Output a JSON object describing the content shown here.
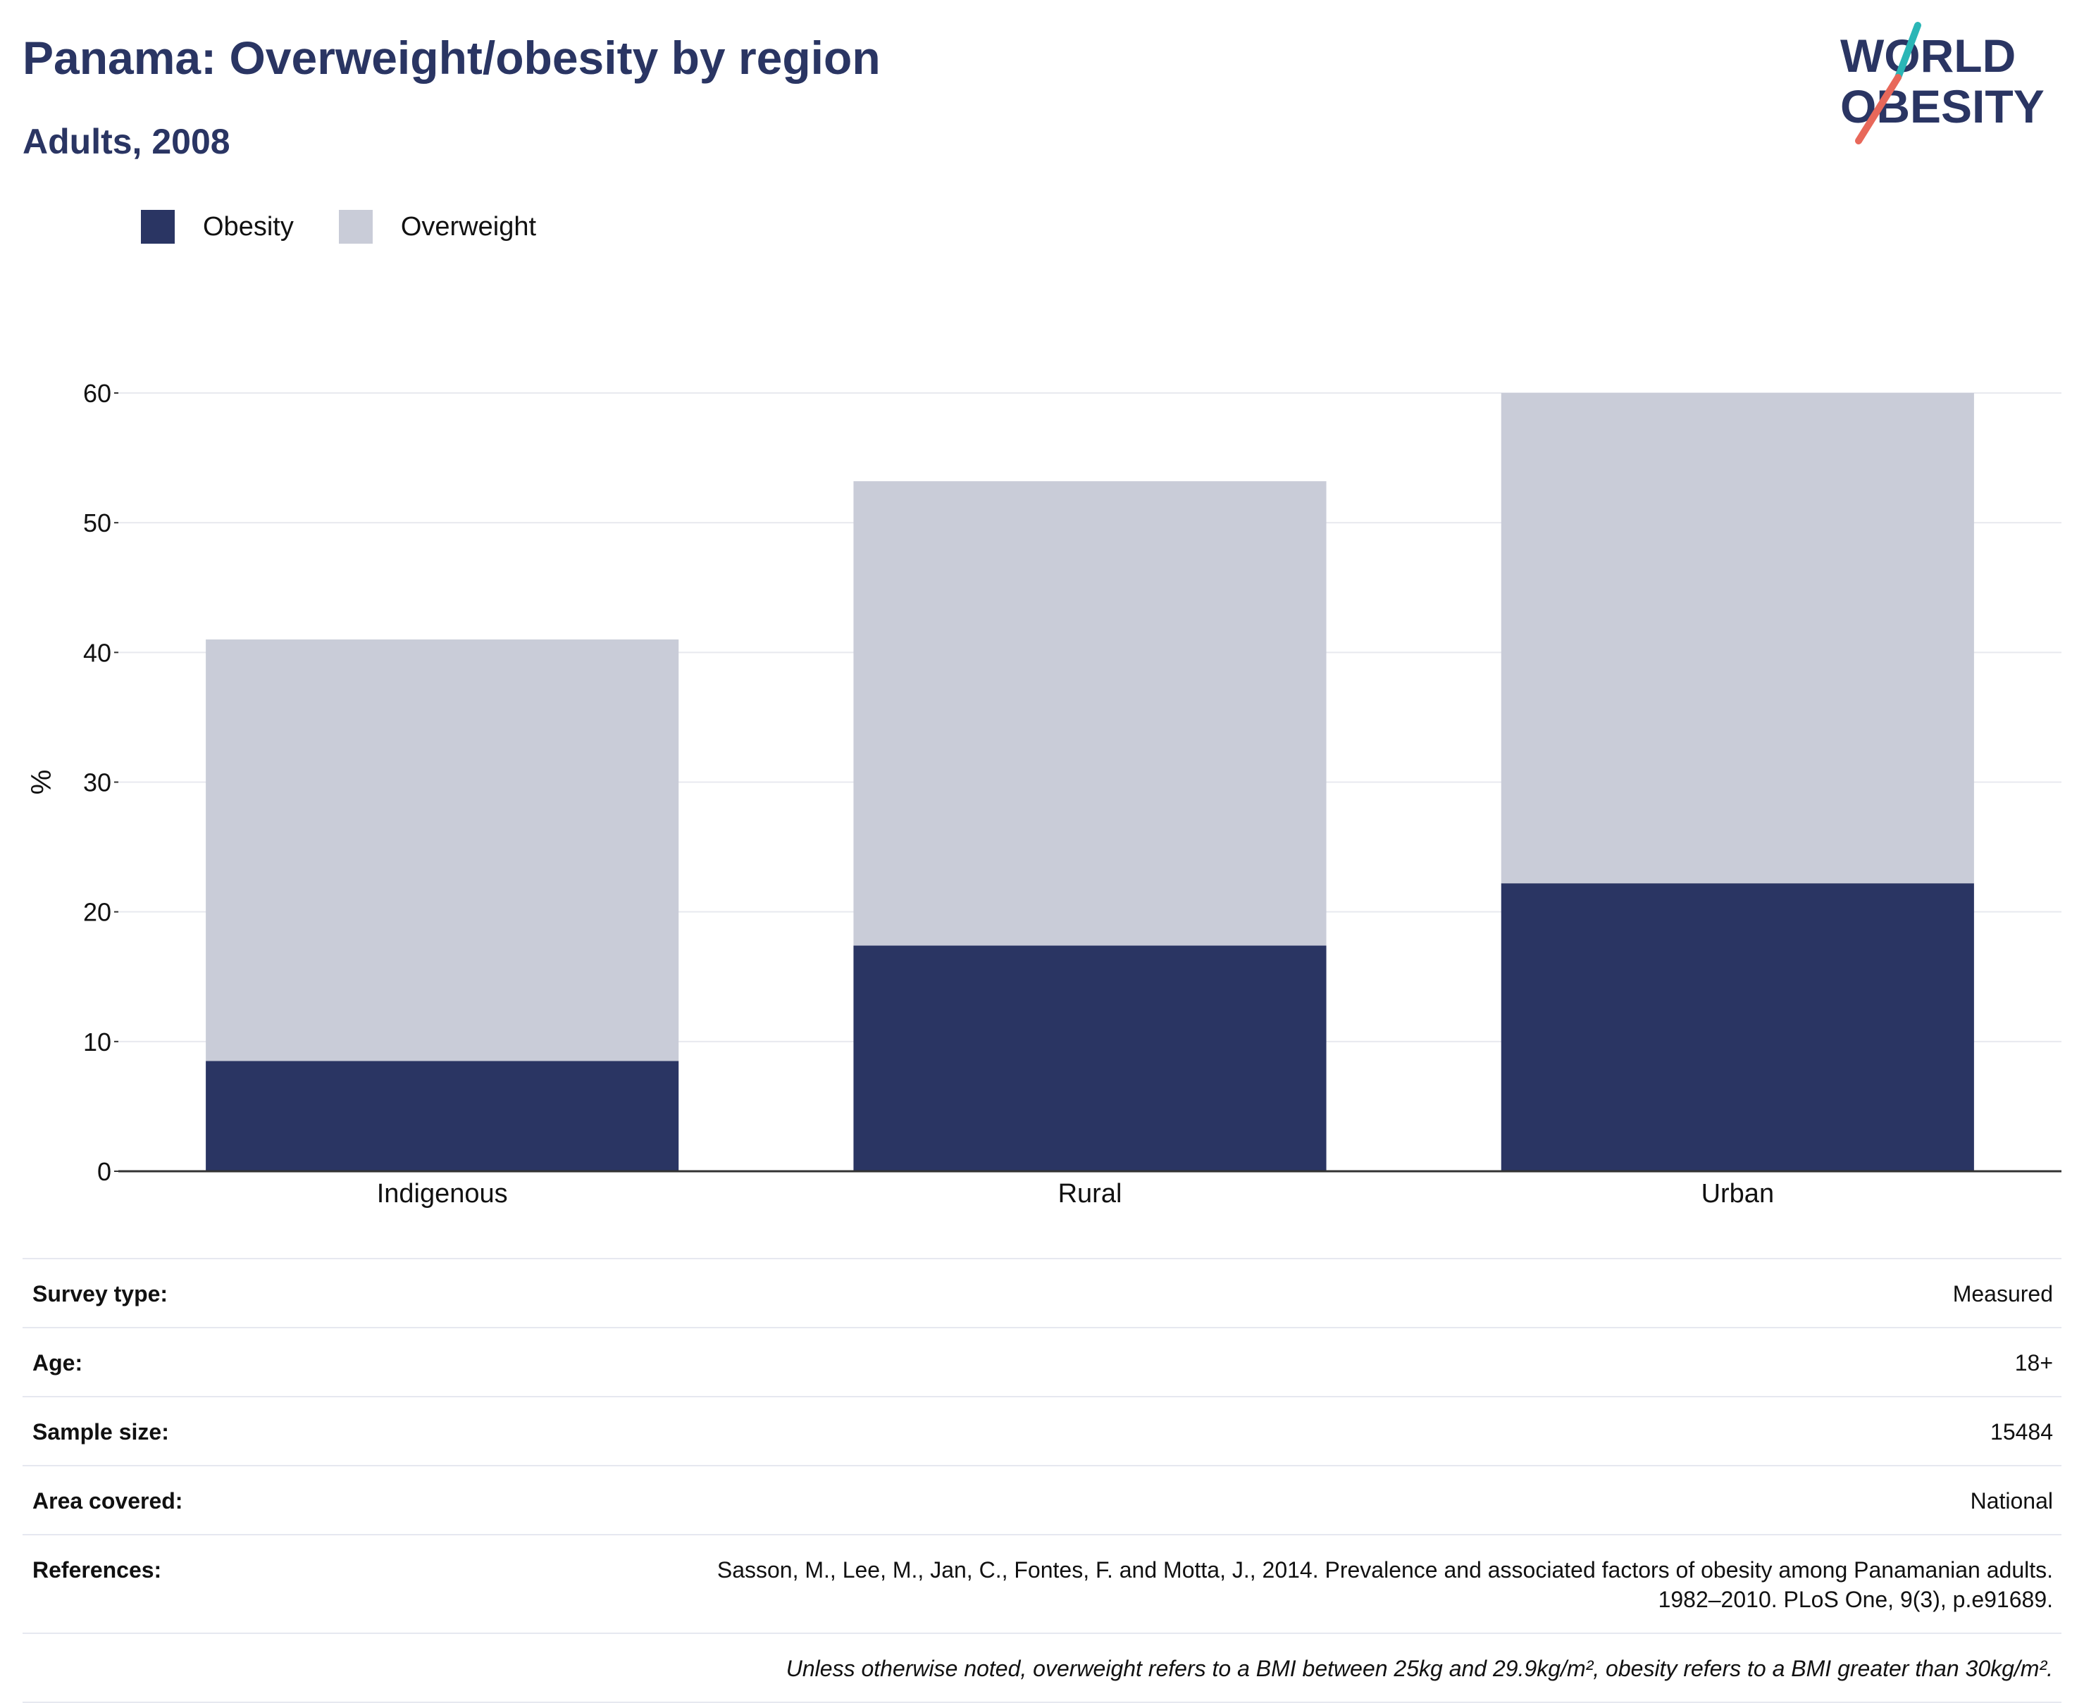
{
  "header": {
    "title": "Panama: Overweight/obesity by region",
    "subtitle": "Adults, 2008"
  },
  "logo": {
    "line1": "WORLD",
    "line2": "OBESITY",
    "icon": "world-obesity-logo"
  },
  "colors": {
    "obesity": "#2a3563",
    "overweight": "#c9ccd8",
    "title": "#2a3563",
    "grid": "#e8e9ef",
    "axis": "#333333",
    "logo_teal": "#2bb6b6",
    "logo_coral": "#e8685a"
  },
  "chart_data": {
    "type": "bar",
    "stacked": true,
    "categories": [
      "Indigenous",
      "Rural",
      "Urban"
    ],
    "series": [
      {
        "name": "Obesity",
        "values": [
          8.5,
          17.4,
          22.2
        ]
      },
      {
        "name": "Overweight",
        "values": [
          32.5,
          35.8,
          37.8
        ]
      }
    ],
    "title": "Panama: Overweight/obesity by region",
    "subtitle": "Adults, 2008",
    "xlabel": "",
    "ylabel": "%",
    "ylim": [
      0,
      60
    ],
    "yticks": [
      0,
      10,
      20,
      30,
      40,
      50,
      60
    ],
    "grid": true,
    "legend_position": "top-left"
  },
  "meta": {
    "rows": [
      {
        "key": "Survey type:",
        "value": "Measured"
      },
      {
        "key": "Age:",
        "value": "18+"
      },
      {
        "key": "Sample size:",
        "value": "15484"
      },
      {
        "key": "Area covered:",
        "value": "National"
      }
    ],
    "references_key": "References:",
    "references_line1": "Sasson, M., Lee, M., Jan, C., Fontes, F. and Motta, J., 2014. Prevalence and associated factors of obesity among Panamanian adults.",
    "references_line2": "1982–2010. PLoS One, 9(3), p.e91689.",
    "note": "Unless otherwise noted, overweight refers to a BMI between 25kg and 29.9kg/m², obesity refers to a BMI greater than 30kg/m²."
  }
}
